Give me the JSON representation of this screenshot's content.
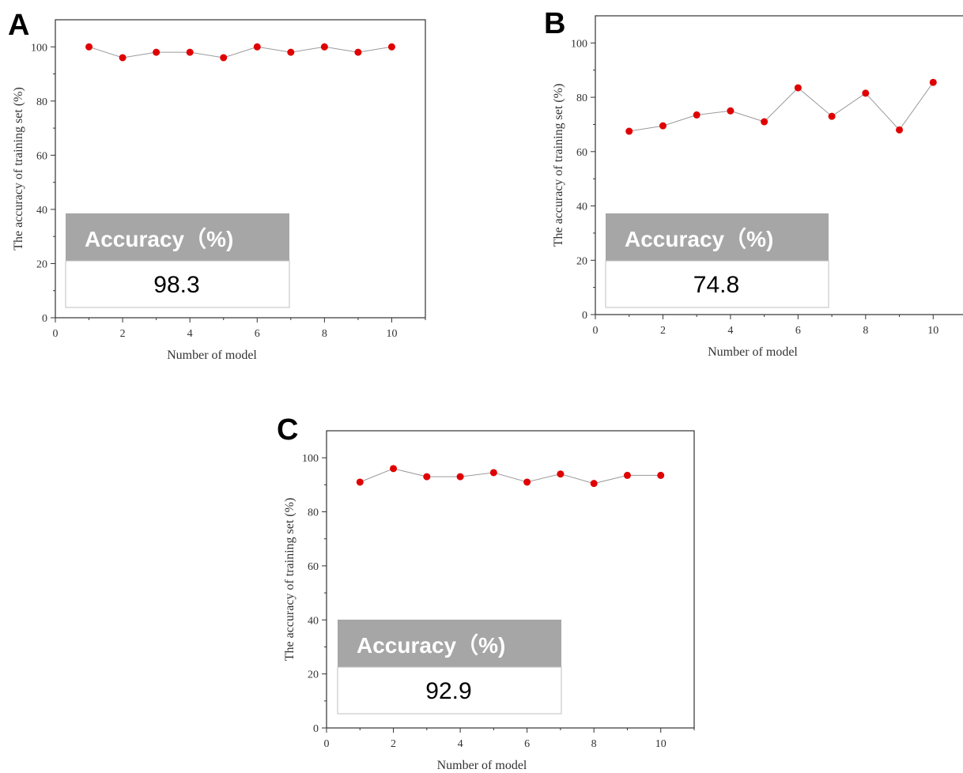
{
  "chart_data": [
    {
      "panel": "A",
      "type": "line",
      "xlabel": "Number of model",
      "ylabel": "The accuracy of training set (%)",
      "x": [
        1,
        2,
        3,
        4,
        5,
        6,
        7,
        8,
        9,
        10
      ],
      "values": [
        100,
        96,
        98,
        98,
        96,
        100,
        98,
        100,
        98,
        100
      ],
      "xlim": [
        0,
        11
      ],
      "ylim": [
        0,
        110
      ],
      "xticks": [
        0,
        2,
        4,
        6,
        8,
        10
      ],
      "yticks": [
        0,
        20,
        40,
        60,
        80,
        100
      ],
      "marker_color": "#e00000",
      "line_color": "#9a9a9a",
      "accuracy_header": "Accuracy（%)",
      "accuracy_value": "98.3"
    },
    {
      "panel": "B",
      "type": "line",
      "xlabel": "Number of model",
      "ylabel": "The accuracy of training set (%)",
      "x": [
        1,
        2,
        3,
        4,
        5,
        6,
        7,
        8,
        9,
        10
      ],
      "values": [
        67.5,
        69.5,
        73.5,
        75,
        71,
        83.5,
        73,
        81.5,
        68,
        85.5
      ],
      "xlim": [
        0,
        11
      ],
      "ylim": [
        0,
        110
      ],
      "xticks": [
        0,
        2,
        4,
        6,
        8,
        10
      ],
      "yticks": [
        0,
        20,
        40,
        60,
        80,
        100
      ],
      "marker_color": "#e00000",
      "line_color": "#9a9a9a",
      "accuracy_header": "Accuracy（%)",
      "accuracy_value": "74.8"
    },
    {
      "panel": "C",
      "type": "line",
      "xlabel": "Number of model",
      "ylabel": "The accuracy of training set (%)",
      "x": [
        1,
        2,
        3,
        4,
        5,
        6,
        7,
        8,
        9,
        10
      ],
      "values": [
        91,
        96,
        93,
        93,
        94.5,
        91,
        94,
        90.5,
        93.5,
        93.5
      ],
      "xlim": [
        0,
        11
      ],
      "ylim": [
        0,
        110
      ],
      "xticks": [
        0,
        2,
        4,
        6,
        8,
        10
      ],
      "yticks": [
        0,
        20,
        40,
        60,
        80,
        100
      ],
      "marker_color": "#e00000",
      "line_color": "#9a9a9a",
      "accuracy_header": "Accuracy（%)",
      "accuracy_value": "92.9"
    }
  ]
}
